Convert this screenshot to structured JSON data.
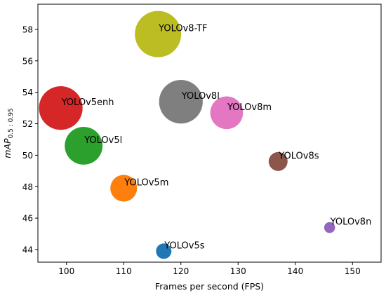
{
  "chart_data": {
    "type": "scatter",
    "title": "",
    "xlabel": "Frames per second (FPS)",
    "ylabel": {
      "prefix": "mAP",
      "subscript": "0.5 : 0.95"
    },
    "xlim": [
      95,
      155
    ],
    "ylim": [
      43.2,
      59.6
    ],
    "xticks": [
      100,
      110,
      120,
      130,
      140,
      150
    ],
    "yticks": [
      44,
      46,
      48,
      50,
      52,
      54,
      56,
      58
    ],
    "grid": false,
    "legend": "none",
    "series": [
      {
        "label": "YOLOv5s",
        "x": 117,
        "y": 43.9,
        "size": 1,
        "color": "#1f77b4"
      },
      {
        "label": "YOLOv5m",
        "x": 110,
        "y": 47.9,
        "size": 3,
        "color": "#ff7f0e"
      },
      {
        "label": "YOLOv5l",
        "x": 103,
        "y": 50.6,
        "size": 6,
        "color": "#2ca02c"
      },
      {
        "label": "YOLOv5enh",
        "x": 99,
        "y": 53.0,
        "size": 8,
        "color": "#d62728"
      },
      {
        "label": "YOLOv8n",
        "x": 146,
        "y": 45.4,
        "size": 0.5,
        "color": "#9467bd"
      },
      {
        "label": "YOLOv8s",
        "x": 137,
        "y": 49.6,
        "size": 1.5,
        "color": "#8c564b"
      },
      {
        "label": "YOLOv8m",
        "x": 128,
        "y": 52.7,
        "size": 4.5,
        "color": "#e377c2"
      },
      {
        "label": "YOLOv8l",
        "x": 120,
        "y": 53.4,
        "size": 8,
        "color": "#7f7f7f"
      },
      {
        "label": "YOLOv8-TF",
        "x": 116,
        "y": 57.7,
        "size": 9,
        "color": "#bcbd22"
      }
    ]
  }
}
